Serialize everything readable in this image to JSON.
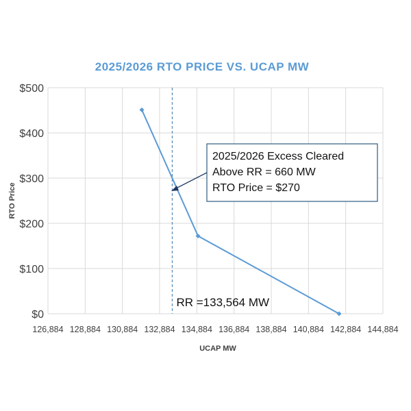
{
  "colors": {
    "title": "#5B9BD5",
    "series": "#5B9BD5",
    "grid": "#D9D9D9",
    "ref_line": "#5B8DB8",
    "annotation_border": "#2F5B80",
    "arrow": "#1F3864"
  },
  "chart_data": {
    "type": "line",
    "title": "2025/2026 RTO PRICE VS. UCAP MW",
    "xlabel": "UCAP MW",
    "ylabel": "RTO Price",
    "xlim": [
      126884,
      144884
    ],
    "ylim": [
      0,
      500
    ],
    "xticks": [
      126884,
      128884,
      130884,
      132884,
      134884,
      136884,
      138884,
      140884,
      142884,
      144884
    ],
    "xtick_labels": [
      "126,884",
      "128,884",
      "130,884",
      "132,884",
      "134,884",
      "136,884",
      "138,884",
      "140,884",
      "142,884",
      "144,884"
    ],
    "yticks": [
      0,
      100,
      200,
      300,
      400,
      500
    ],
    "ytick_labels": [
      "$0",
      "$100",
      "$200",
      "$300",
      "$400",
      "$500"
    ],
    "grid": true,
    "series": [
      {
        "x": [
          131928,
          134948,
          142528
        ],
        "y": [
          451,
          172,
          0
        ]
      }
    ],
    "reference_line": {
      "x": 133564,
      "label": "RR =133,564 MW"
    },
    "annotation": {
      "lines": [
        "2025/2026 Excess Cleared",
        "Above RR = 660 MW",
        "RTO Price = $270"
      ]
    }
  }
}
